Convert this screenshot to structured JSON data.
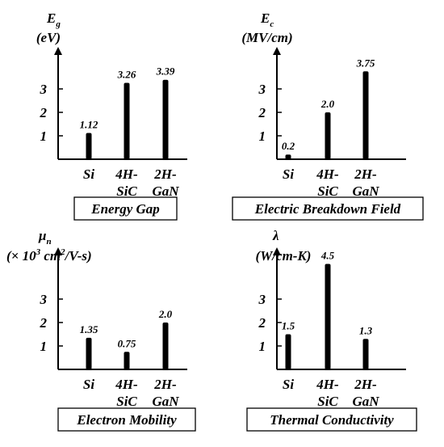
{
  "chart_data": [
    {
      "type": "bar",
      "title": "Energy Gap",
      "ylabel": "E",
      "ylabel_sub": "g",
      "unit": "(eV)",
      "categories": [
        [
          "Si"
        ],
        [
          "4H-",
          "SiC"
        ],
        [
          "2H-",
          "GaN"
        ]
      ],
      "values": [
        1.12,
        3.26,
        3.39
      ],
      "value_labels": [
        "1.12",
        "3.26",
        "3.39"
      ],
      "yticks": [
        "1",
        "2",
        "3"
      ],
      "ylim": [
        0,
        4.4
      ]
    },
    {
      "type": "bar",
      "title": "Electric Breakdown Field",
      "ylabel": "E",
      "ylabel_sub": "c",
      "unit": "(MV/cm)",
      "categories": [
        [
          "Si"
        ],
        [
          "4H-",
          "SiC"
        ],
        [
          "2H-",
          "GaN"
        ]
      ],
      "values": [
        0.2,
        2.0,
        3.75
      ],
      "value_labels": [
        "0.2",
        "2.0",
        "3.75"
      ],
      "yticks": [
        "1",
        "2",
        "3"
      ],
      "ylim": [
        0,
        4.4
      ]
    },
    {
      "type": "bar",
      "title": "Electron Mobility",
      "ylabel": "μ",
      "ylabel_sub": "n",
      "unit": "(× 10",
      "unit_sup": "3",
      "unit_mid": " cm",
      "unit_sup2": "2",
      "unit_tail": "/V-s)",
      "categories": [
        [
          "Si"
        ],
        [
          "4H-",
          "SiC"
        ],
        [
          "2H-",
          "GaN"
        ]
      ],
      "values": [
        1.35,
        0.75,
        2.0
      ],
      "value_labels": [
        "1.35",
        "0.75",
        "2.0"
      ],
      "yticks": [
        "1",
        "2",
        "3"
      ],
      "ylim": [
        0,
        4.4
      ]
    },
    {
      "type": "bar",
      "title": "Thermal Conductivity",
      "ylabel": "λ",
      "ylabel_sub": "",
      "unit": "(W/cm-K)",
      "categories": [
        [
          "Si"
        ],
        [
          "4H-",
          "SiC"
        ],
        [
          "2H-",
          "GaN"
        ]
      ],
      "values": [
        1.5,
        4.5,
        1.3
      ],
      "value_labels": [
        "1.5",
        "4.5",
        "1.3"
      ],
      "yticks": [
        "1",
        "2",
        "3"
      ],
      "ylim": [
        0,
        4.4
      ]
    }
  ]
}
